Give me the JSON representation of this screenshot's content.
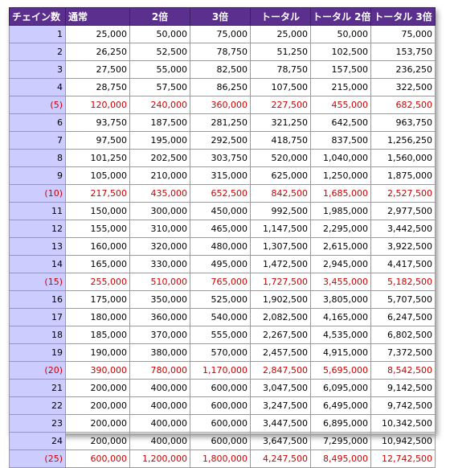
{
  "headers": [
    "チェイン数",
    "通常",
    "2倍",
    "3倍",
    "トータル",
    "トータル 2倍",
    "トータル 3倍"
  ],
  "rows": [
    [
      "1",
      "25,000",
      "50,000",
      "75,000",
      "25,000",
      "50,000",
      "75,000"
    ],
    [
      "2",
      "26,250",
      "52,500",
      "78,750",
      "51,250",
      "102,500",
      "153,750"
    ],
    [
      "3",
      "27,500",
      "55,000",
      "82,500",
      "78,750",
      "157,500",
      "236,250"
    ],
    [
      "4",
      "28,750",
      "57,500",
      "86,250",
      "107,500",
      "215,000",
      "322,500"
    ],
    [
      "(5)",
      "120,000",
      "240,000",
      "360,000",
      "227,500",
      "455,000",
      "682,500"
    ],
    [
      "6",
      "93,750",
      "187,500",
      "281,250",
      "321,250",
      "642,500",
      "963,750"
    ],
    [
      "7",
      "97,500",
      "195,000",
      "292,500",
      "418,750",
      "837,500",
      "1,256,250"
    ],
    [
      "8",
      "101,250",
      "202,500",
      "303,750",
      "520,000",
      "1,040,000",
      "1,560,000"
    ],
    [
      "9",
      "105,000",
      "210,000",
      "315,000",
      "625,000",
      "1,250,000",
      "1,875,000"
    ],
    [
      "(10)",
      "217,500",
      "435,000",
      "652,500",
      "842,500",
      "1,685,000",
      "2,527,500"
    ],
    [
      "11",
      "150,000",
      "300,000",
      "450,000",
      "992,500",
      "1,985,000",
      "2,977,500"
    ],
    [
      "12",
      "155,000",
      "310,000",
      "465,000",
      "1,147,500",
      "2,295,000",
      "3,442,500"
    ],
    [
      "13",
      "160,000",
      "320,000",
      "480,000",
      "1,307,500",
      "2,615,000",
      "3,922,500"
    ],
    [
      "14",
      "165,000",
      "330,000",
      "495,000",
      "1,472,500",
      "2,945,000",
      "4,417,500"
    ],
    [
      "(15)",
      "255,000",
      "510,000",
      "765,000",
      "1,727,500",
      "3,455,000",
      "5,182,500"
    ],
    [
      "16",
      "175,000",
      "350,000",
      "525,000",
      "1,902,500",
      "3,805,000",
      "5,707,500"
    ],
    [
      "17",
      "180,000",
      "360,000",
      "540,000",
      "2,082,500",
      "4,165,000",
      "6,247,500"
    ],
    [
      "18",
      "185,000",
      "370,000",
      "555,000",
      "2,267,500",
      "4,535,000",
      "6,802,500"
    ],
    [
      "19",
      "190,000",
      "380,000",
      "570,000",
      "2,457,500",
      "4,915,000",
      "7,372,500"
    ],
    [
      "(20)",
      "390,000",
      "780,000",
      "1,170,000",
      "2,847,500",
      "5,695,000",
      "8,542,500"
    ],
    [
      "21",
      "200,000",
      "400,000",
      "600,000",
      "3,047,500",
      "6,095,000",
      "9,142,500"
    ],
    [
      "22",
      "200,000",
      "400,000",
      "600,000",
      "3,247,500",
      "6,495,000",
      "9,742,500"
    ],
    [
      "23",
      "200,000",
      "400,000",
      "600,000",
      "3,447,500",
      "6,895,000",
      "10,342,500"
    ],
    [
      "24",
      "200,000",
      "400,000",
      "600,000",
      "3,647,500",
      "7,295,000",
      "10,942,500"
    ],
    [
      "(25)",
      "600,000",
      "1,200,000",
      "1,800,000",
      "4,247,500",
      "8,495,000",
      "12,742,500"
    ]
  ],
  "colors": {
    "header_background": "#5b2f8e",
    "header_text": "#ffffff",
    "index_background": "#ccccff",
    "milestone_text": "#cc0000",
    "normal_text": "#000000"
  }
}
